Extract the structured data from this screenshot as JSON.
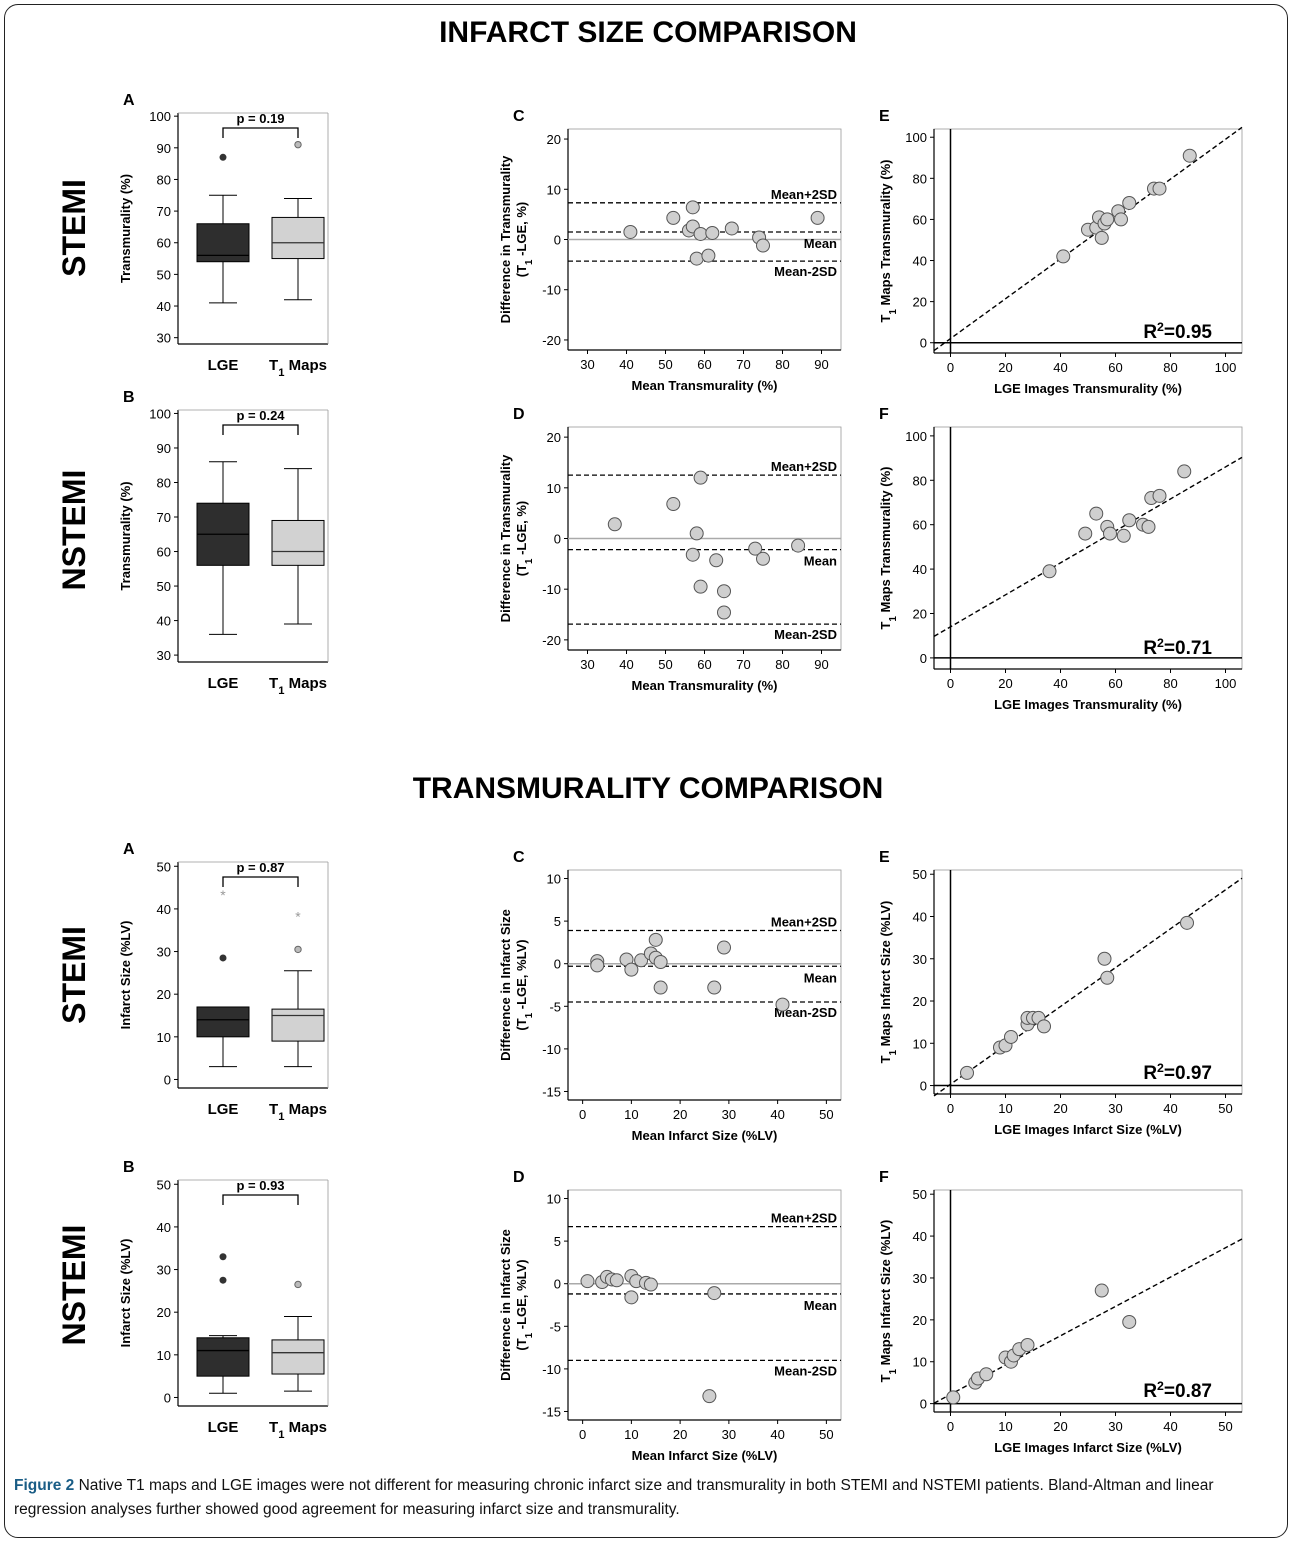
{
  "figure": {
    "section_titles": [
      "INFARCT SIZE COMPARISON",
      "TRANSMURALITY COMPARISON"
    ],
    "row_labels": [
      "STEMI",
      "NSTEMI",
      "STEMI",
      "NSTEMI"
    ],
    "caption": {
      "label": "Figure 2",
      "text": " Native T1 maps and LGE images were not different for measuring chronic infarct size and transmurality in both STEMI and NSTEMI patients. Bland-Altman and linear regression analyses further showed good agreement for measuring infarct size and transmurality."
    }
  },
  "colors": {
    "lge_box": "#2e2e2e",
    "t1_box": "#d2d2d2",
    "point_fill": "#cfcfcf",
    "line": "#000000"
  },
  "chart_data": [
    {
      "id": "s1A",
      "panel": "A",
      "type": "box",
      "ylabel": "Transmurality (%)",
      "ylim": [
        28,
        101
      ],
      "yticks": [
        30,
        40,
        50,
        60,
        70,
        80,
        90,
        100
      ],
      "categories": [
        "LGE",
        "T1 Maps"
      ],
      "p_label": "p = 0.19",
      "boxes": [
        {
          "name": "LGE",
          "min": 41,
          "q1": 54,
          "median": 56,
          "q3": 66,
          "max": 75,
          "outliers": [
            {
              "v": 87,
              "kind": "dot"
            }
          ]
        },
        {
          "name": "T1 Maps",
          "min": 42,
          "q1": 55,
          "median": 60,
          "q3": 68,
          "max": 74,
          "outliers": [
            {
              "v": 91,
              "kind": "circle"
            }
          ]
        }
      ]
    },
    {
      "id": "s1C",
      "panel": "C",
      "type": "scatter",
      "subtype": "bland-altman",
      "xlabel": "Mean Transmurality (%)",
      "ylabel": [
        "Difference in Transmurality",
        "(T1 -LGE, %)"
      ],
      "xlim": [
        25,
        95
      ],
      "ylim": [
        -22,
        22
      ],
      "xticks": [
        30,
        40,
        50,
        60,
        70,
        80,
        90
      ],
      "yticks": [
        -20,
        -10,
        0,
        10,
        20
      ],
      "lines": {
        "zero": 0,
        "mean": 1.5,
        "upper": 7.3,
        "lower": -4.3
      },
      "line_labels": {
        "upper": "Mean+2SD",
        "mean": "Mean",
        "lower": "Mean-2SD"
      },
      "points": [
        [
          41,
          1.5
        ],
        [
          52,
          4.3
        ],
        [
          56,
          1.8
        ],
        [
          57,
          2.6
        ],
        [
          57,
          6.4
        ],
        [
          58,
          -3.8
        ],
        [
          59,
          1.1
        ],
        [
          61,
          -3.2
        ],
        [
          62,
          1.3
        ],
        [
          67,
          2.2
        ],
        [
          74,
          0.4
        ],
        [
          75,
          -1.2
        ],
        [
          89,
          4.3
        ]
      ]
    },
    {
      "id": "s1E",
      "panel": "E",
      "type": "scatter",
      "subtype": "regression",
      "xlabel": "LGE Images Transmurality (%)",
      "ylabel": [
        "T1 Maps Transmurality (%)"
      ],
      "xlim": [
        -6,
        106
      ],
      "ylim": [
        -5,
        104
      ],
      "xticks": [
        0,
        20,
        40,
        60,
        80,
        100
      ],
      "yticks": [
        0,
        20,
        40,
        60,
        80,
        100
      ],
      "r2": "0.95",
      "fit": {
        "slope": 0.97,
        "intercept": 2
      },
      "points": [
        [
          41,
          42
        ],
        [
          50,
          55
        ],
        [
          53,
          56
        ],
        [
          54,
          61
        ],
        [
          55,
          51
        ],
        [
          56,
          58
        ],
        [
          57,
          60
        ],
        [
          61,
          64
        ],
        [
          62,
          60
        ],
        [
          65,
          68
        ],
        [
          74,
          75
        ],
        [
          76,
          75
        ],
        [
          87,
          91
        ]
      ]
    },
    {
      "id": "s1B",
      "panel": "B",
      "type": "box",
      "ylabel": "Transmurality (%)",
      "ylim": [
        28,
        101
      ],
      "yticks": [
        30,
        40,
        50,
        60,
        70,
        80,
        90,
        100
      ],
      "categories": [
        "LGE",
        "T1 Maps"
      ],
      "p_label": "p = 0.24",
      "boxes": [
        {
          "name": "LGE",
          "min": 36,
          "q1": 56,
          "median": 65,
          "q3": 74,
          "max": 86,
          "outliers": []
        },
        {
          "name": "T1 Maps",
          "min": 39,
          "q1": 56,
          "median": 60,
          "q3": 69,
          "max": 84,
          "outliers": []
        }
      ]
    },
    {
      "id": "s1D",
      "panel": "D",
      "type": "scatter",
      "subtype": "bland-altman",
      "xlabel": "Mean Transmurality (%)",
      "ylabel": [
        "Difference in Transmurality",
        "(T1 -LGE, %)"
      ],
      "xlim": [
        25,
        95
      ],
      "ylim": [
        -22,
        22
      ],
      "xticks": [
        30,
        40,
        50,
        60,
        70,
        80,
        90
      ],
      "yticks": [
        -20,
        -10,
        0,
        10,
        20
      ],
      "lines": {
        "zero": 0,
        "mean": -2.2,
        "upper": 12.5,
        "lower": -16.9
      },
      "line_labels": {
        "upper": "Mean+2SD",
        "mean": "Mean",
        "lower": "Mean-2SD"
      },
      "points": [
        [
          37,
          2.8
        ],
        [
          52,
          6.8
        ],
        [
          57,
          -3.2
        ],
        [
          58,
          1.0
        ],
        [
          59,
          12.0
        ],
        [
          59,
          -9.5
        ],
        [
          63,
          -4.3
        ],
        [
          65,
          -10.4
        ],
        [
          65,
          -14.6
        ],
        [
          73,
          -2.0
        ],
        [
          75,
          -4.0
        ],
        [
          84,
          -1.4
        ]
      ]
    },
    {
      "id": "s1F",
      "panel": "F",
      "type": "scatter",
      "subtype": "regression",
      "xlabel": "LGE Images Transmurality (%)",
      "ylabel": [
        "T1 Maps Transmurality (%)"
      ],
      "xlim": [
        -6,
        106
      ],
      "ylim": [
        -5,
        104
      ],
      "xticks": [
        0,
        20,
        40,
        60,
        80,
        100
      ],
      "yticks": [
        0,
        20,
        40,
        60,
        80,
        100
      ],
      "r2": "0.71",
      "fit": {
        "slope": 0.72,
        "intercept": 14
      },
      "points": [
        [
          36,
          39
        ],
        [
          49,
          56
        ],
        [
          53,
          65
        ],
        [
          57,
          59
        ],
        [
          58,
          56
        ],
        [
          63,
          55
        ],
        [
          65,
          62
        ],
        [
          70,
          60
        ],
        [
          72,
          59
        ],
        [
          73,
          72
        ],
        [
          76,
          73
        ],
        [
          85,
          84
        ]
      ]
    },
    {
      "id": "s2A",
      "panel": "A",
      "type": "box",
      "ylabel": "Infarct Size (%LV)",
      "ylim": [
        -2,
        51
      ],
      "yticks": [
        0,
        10,
        20,
        30,
        40,
        50
      ],
      "categories": [
        "LGE",
        "T1 Maps"
      ],
      "p_label": "p = 0.87",
      "boxes": [
        {
          "name": "LGE",
          "min": 3,
          "q1": 10,
          "median": 14,
          "q3": 17,
          "max": 17,
          "outliers": [
            {
              "v": 28.5,
              "kind": "dot"
            },
            {
              "v": 43.5,
              "kind": "star"
            }
          ]
        },
        {
          "name": "T1 Maps",
          "min": 3,
          "q1": 9,
          "median": 15,
          "q3": 16.5,
          "max": 25.5,
          "outliers": [
            {
              "v": 30.5,
              "kind": "circle"
            },
            {
              "v": 38.5,
              "kind": "star"
            }
          ]
        }
      ]
    },
    {
      "id": "s2C",
      "panel": "C",
      "type": "scatter",
      "subtype": "bland-altman",
      "xlabel": "Mean Infarct Size (%LV)",
      "ylabel": [
        "Difference in Infarct Size",
        "(T1 -LGE, %LV)"
      ],
      "xlim": [
        -3,
        53
      ],
      "ylim": [
        -16,
        11
      ],
      "xticks": [
        0,
        10,
        20,
        30,
        40,
        50
      ],
      "yticks": [
        -15,
        -10,
        -5,
        0,
        5,
        10
      ],
      "lines": {
        "zero": 0,
        "mean": -0.3,
        "upper": 3.9,
        "lower": -4.5
      },
      "line_labels": {
        "upper": "Mean+2SD",
        "mean": "Mean",
        "lower": "Mean-2SD"
      },
      "points": [
        [
          3,
          0.3
        ],
        [
          3,
          -0.2
        ],
        [
          9,
          0.5
        ],
        [
          10,
          -0.7
        ],
        [
          12,
          0.4
        ],
        [
          14,
          1.2
        ],
        [
          15,
          2.8
        ],
        [
          15,
          0.7
        ],
        [
          16,
          0.2
        ],
        [
          16,
          -2.8
        ],
        [
          27,
          -2.8
        ],
        [
          29,
          1.9
        ],
        [
          41,
          -4.8
        ]
      ]
    },
    {
      "id": "s2E",
      "panel": "E",
      "type": "scatter",
      "subtype": "regression",
      "xlabel": "LGE Images Infarct Size (%LV)",
      "ylabel": [
        "T1 Maps Infarct Size (%LV)"
      ],
      "xlim": [
        -3,
        53
      ],
      "ylim": [
        -2,
        51
      ],
      "xticks": [
        0,
        10,
        20,
        30,
        40,
        50
      ],
      "yticks": [
        0,
        10,
        20,
        30,
        40,
        50
      ],
      "r2": "0.97",
      "fit": {
        "slope": 0.92,
        "intercept": 0.3
      },
      "points": [
        [
          3,
          3
        ],
        [
          9,
          9
        ],
        [
          10,
          9.5
        ],
        [
          11,
          11.5
        ],
        [
          14,
          14.5
        ],
        [
          14,
          16
        ],
        [
          15,
          16
        ],
        [
          16,
          16
        ],
        [
          17,
          14
        ],
        [
          28,
          30
        ],
        [
          28.5,
          25.5
        ],
        [
          43,
          38.5
        ]
      ]
    },
    {
      "id": "s2B",
      "panel": "B",
      "type": "box",
      "ylabel": "Infarct Size (%LV)",
      "ylim": [
        -2,
        51
      ],
      "yticks": [
        0,
        10,
        20,
        30,
        40,
        50
      ],
      "categories": [
        "LGE",
        "T1 Maps"
      ],
      "p_label": "p = 0.93",
      "boxes": [
        {
          "name": "LGE",
          "min": 1,
          "q1": 5,
          "median": 11,
          "q3": 14,
          "max": 14.5,
          "outliers": [
            {
              "v": 27.5,
              "kind": "dot"
            },
            {
              "v": 33,
              "kind": "dot"
            }
          ]
        },
        {
          "name": "T1 Maps",
          "min": 1.5,
          "q1": 5.5,
          "median": 10.5,
          "q3": 13.5,
          "max": 19,
          "outliers": [
            {
              "v": 26.5,
              "kind": "circle"
            }
          ]
        }
      ]
    },
    {
      "id": "s2D",
      "panel": "D",
      "type": "scatter",
      "subtype": "bland-altman",
      "xlabel": "Mean Infarct Size (%LV)",
      "ylabel": [
        "Difference in Infarct Size",
        "(T1 -LGE, %LV)"
      ],
      "xlim": [
        -3,
        53
      ],
      "ylim": [
        -16,
        11
      ],
      "xticks": [
        0,
        10,
        20,
        30,
        40,
        50
      ],
      "yticks": [
        -15,
        -10,
        -5,
        0,
        5,
        10
      ],
      "lines": {
        "zero": 0,
        "mean": -1.2,
        "upper": 6.7,
        "lower": -9.0
      },
      "line_labels": {
        "upper": "Mean+2SD",
        "mean": "Mean",
        "lower": "Mean-2SD"
      },
      "points": [
        [
          1,
          0.3
        ],
        [
          4,
          0.2
        ],
        [
          5,
          0.8
        ],
        [
          6,
          0.5
        ],
        [
          7,
          0.4
        ],
        [
          10,
          0.9
        ],
        [
          10,
          -1.6
        ],
        [
          11,
          0.3
        ],
        [
          13,
          0.1
        ],
        [
          14,
          -0.1
        ],
        [
          26,
          -13.2
        ],
        [
          27,
          -1.1
        ]
      ]
    },
    {
      "id": "s2F",
      "panel": "F",
      "type": "scatter",
      "subtype": "regression",
      "xlabel": "LGE Images Infarct Size (%LV)",
      "ylabel": [
        "T1 Maps Infarct Size (%LV)"
      ],
      "xlim": [
        -3,
        53
      ],
      "ylim": [
        -2,
        51
      ],
      "xticks": [
        0,
        10,
        20,
        30,
        40,
        50
      ],
      "yticks": [
        0,
        10,
        20,
        30,
        40,
        50
      ],
      "r2": "0.87",
      "fit": {
        "slope": 0.7,
        "intercept": 2.2
      },
      "points": [
        [
          0.5,
          1.5
        ],
        [
          4.5,
          5
        ],
        [
          5,
          6
        ],
        [
          6.5,
          7
        ],
        [
          10,
          11
        ],
        [
          11,
          10
        ],
        [
          11.5,
          11.5
        ],
        [
          12.5,
          13
        ],
        [
          14,
          14
        ],
        [
          27.5,
          27
        ],
        [
          32.5,
          19.5
        ]
      ]
    }
  ]
}
